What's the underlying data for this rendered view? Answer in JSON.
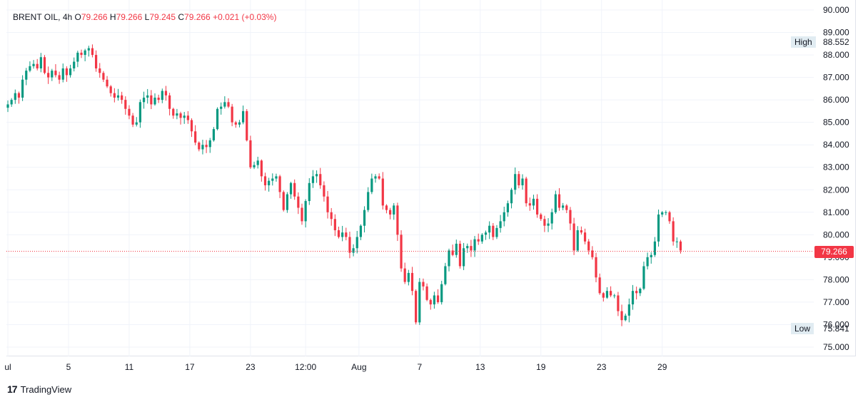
{
  "legend": {
    "symbol": "BRENT OIL",
    "interval": "4h",
    "open_label": "O",
    "open": "79.266",
    "high_label": "H",
    "high": "79.266",
    "low_label": "L",
    "low": "79.245",
    "close_label": "C",
    "close": "79.266",
    "change": "+0.021 (+0.03%)"
  },
  "price_labels": {
    "high_name": "High",
    "high_value": "88.552",
    "low_name": "Low",
    "low_value": "75.841",
    "last_value": "79.266"
  },
  "branding": {
    "logo_text": "TradingView"
  },
  "colors": {
    "up": "#089981",
    "down": "#f23645",
    "grid": "#f0f3fa",
    "last_line": "#f23645"
  },
  "chart_data": {
    "type": "candlestick",
    "ylim": [
      74.5,
      90.3
    ],
    "y_ticks": [
      "75.000",
      "76.000",
      "77.000",
      "78.000",
      "79.000",
      "80.000",
      "81.000",
      "82.000",
      "83.000",
      "84.000",
      "85.000",
      "86.000",
      "87.000",
      "88.000",
      "89.000",
      "90.000"
    ],
    "x_ticks": [
      {
        "label": "ul",
        "index": 0
      },
      {
        "label": "5",
        "index": 16.5
      },
      {
        "label": "11",
        "index": 33
      },
      {
        "label": "17",
        "index": 49.5
      },
      {
        "label": "23",
        "index": 66
      },
      {
        "label": "12:00",
        "index": 81
      },
      {
        "label": "Aug",
        "index": 95.5
      },
      {
        "label": "7",
        "index": 112
      },
      {
        "label": "13",
        "index": 128.5
      },
      {
        "label": "19",
        "index": 145
      },
      {
        "label": "23",
        "index": 161.5
      },
      {
        "label": "29",
        "index": 178
      }
    ],
    "last_price": 79.266,
    "candles_close": [
      85.8,
      86.0,
      86.3,
      86.1,
      86.9,
      87.3,
      87.5,
      87.6,
      87.4,
      87.9,
      87.2,
      87.0,
      87.3,
      87.1,
      86.9,
      87.4,
      87.1,
      87.4,
      87.7,
      88.1,
      88.0,
      88.2,
      88.3,
      88.0,
      87.4,
      87.2,
      86.9,
      86.6,
      86.3,
      86.1,
      86.2,
      86.0,
      85.6,
      85.3,
      84.9,
      85.0,
      85.9,
      86.1,
      86.2,
      85.8,
      86.1,
      86.0,
      86.4,
      86.2,
      85.6,
      85.3,
      85.4,
      85.2,
      85.3,
      85.1,
      84.6,
      84.1,
      83.8,
      84.0,
      83.9,
      84.2,
      84.7,
      85.6,
      85.7,
      85.9,
      85.7,
      85.0,
      84.9,
      85.0,
      85.5,
      84.2,
      83.0,
      83.1,
      83.3,
      82.6,
      82.2,
      82.4,
      82.5,
      82.6,
      81.9,
      81.1,
      81.8,
      82.3,
      81.7,
      81.2,
      80.6,
      81.5,
      82.3,
      82.6,
      82.7,
      82.2,
      81.7,
      81.0,
      80.7,
      80.2,
      79.9,
      80.1,
      79.9,
      79.2,
      79.4,
      79.9,
      80.4,
      81.1,
      81.9,
      82.5,
      82.6,
      82.5,
      81.3,
      81.1,
      80.9,
      81.3,
      80.0,
      78.5,
      77.9,
      78.3,
      77.5,
      76.1,
      77.9,
      77.7,
      77.1,
      76.9,
      77.3,
      77.0,
      77.8,
      78.6,
      79.3,
      79.1,
      79.6,
      78.6,
      79.4,
      79.5,
      79.3,
      79.8,
      79.7,
      80.0,
      80.1,
      80.4,
      79.9,
      80.3,
      80.6,
      81.0,
      81.4,
      82.0,
      82.7,
      82.2,
      82.5,
      81.4,
      81.3,
      81.6,
      80.9,
      80.7,
      80.4,
      80.5,
      81.0,
      81.8,
      81.2,
      81.3,
      81.1,
      80.5,
      79.3,
      80.2,
      80.1,
      79.7,
      79.3,
      79.0,
      78.1,
      77.4,
      77.2,
      77.5,
      77.3,
      77.3,
      76.6,
      76.2,
      76.4,
      76.9,
      77.5,
      77.4,
      77.6,
      78.6,
      79.0,
      79.1,
      79.7,
      80.9,
      81.0,
      81.0,
      80.6,
      79.7,
      79.7,
      79.3
    ]
  }
}
